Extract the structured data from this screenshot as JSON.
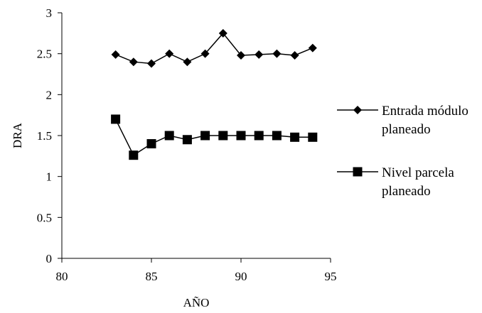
{
  "chart_data": {
    "type": "line",
    "title": "",
    "xlabel": "AÑO",
    "ylabel": "DRA",
    "xlim": [
      80,
      95
    ],
    "ylim": [
      0,
      3
    ],
    "x_ticks": [
      "80",
      "85",
      "90",
      "95"
    ],
    "y_ticks": [
      "0",
      "0.5",
      "1",
      "1.5",
      "2",
      "2.5",
      "3"
    ],
    "grid": false,
    "legend_position": "right",
    "x": [
      83,
      84,
      85,
      86,
      87,
      88,
      89,
      90,
      91,
      92,
      93,
      94
    ],
    "series": [
      {
        "name": "Entrada módulo planeado",
        "legend_lines": [
          "Entrada módulo",
          "planeado"
        ],
        "marker": "diamond",
        "color": "#000000",
        "values": [
          2.49,
          2.4,
          2.38,
          2.5,
          2.4,
          2.5,
          2.75,
          2.48,
          2.49,
          2.5,
          2.48,
          2.57
        ]
      },
      {
        "name": "Nivel parcela planeado",
        "legend_lines": [
          "Nivel parcela",
          "planeado"
        ],
        "marker": "square",
        "color": "#000000",
        "values": [
          1.7,
          1.26,
          1.4,
          1.5,
          1.45,
          1.5,
          1.5,
          1.5,
          1.5,
          1.5,
          1.48,
          1.48
        ]
      }
    ]
  }
}
